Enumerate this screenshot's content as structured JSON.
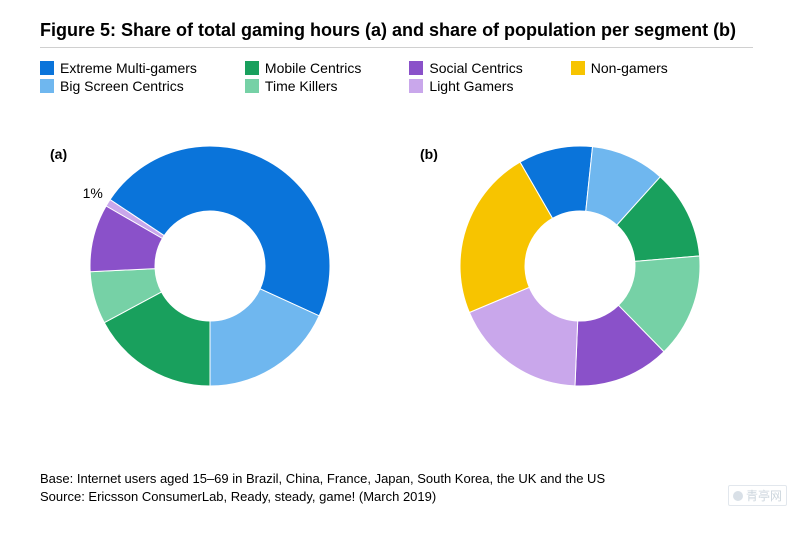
{
  "title": "Figure 5: Share of total gaming hours (a) and share of population per segment (b)",
  "legend": {
    "columns": [
      [
        {
          "label": "Extreme Multi-gamers",
          "color": "#0a74da"
        },
        {
          "label": "Big Screen Centrics",
          "color": "#6fb7ef"
        }
      ],
      [
        {
          "label": "Mobile Centrics",
          "color": "#19a05d"
        },
        {
          "label": "Time Killers",
          "color": "#76d1a6"
        }
      ],
      [
        {
          "label": "Social Centrics",
          "color": "#8a51c9"
        },
        {
          "label": "Light Gamers",
          "color": "#c9a7eb"
        }
      ],
      [
        {
          "label": "Non-gamers",
          "color": "#f7c400"
        }
      ]
    ]
  },
  "charts": {
    "donut_outer_r": 120,
    "donut_inner_r": 55,
    "label_r": 88,
    "size": 260,
    "a": {
      "tag": "(a)",
      "start_angle": 210,
      "slices": [
        {
          "name": "Light Gamers",
          "value": 1,
          "color": "#c9a7eb",
          "label": "1%",
          "label_outside": true
        },
        {
          "name": "Extreme Multi-gamers",
          "value": 47,
          "color": "#0a74da",
          "label": "47%"
        },
        {
          "name": "Big Screen Centrics",
          "value": 18,
          "color": "#6fb7ef",
          "label": "18%"
        },
        {
          "name": "Mobile Centrics",
          "value": 17,
          "color": "#19a05d",
          "label": "17%"
        },
        {
          "name": "Time Killers",
          "value": 7,
          "color": "#76d1a6",
          "label": "7%"
        },
        {
          "name": "Social Centrics",
          "value": 9,
          "color": "#8a51c9",
          "label": "9%"
        }
      ]
    },
    "b": {
      "tag": "(b)",
      "start_angle": 240,
      "slices": [
        {
          "name": "Extreme Multi-gamers",
          "value": 10,
          "color": "#0a74da",
          "label": "10%"
        },
        {
          "name": "Big Screen Centrics",
          "value": 10,
          "color": "#6fb7ef",
          "label": "10%"
        },
        {
          "name": "Mobile Centrics",
          "value": 12,
          "color": "#19a05d",
          "label": "12%"
        },
        {
          "name": "Time Killers",
          "value": 14,
          "color": "#76d1a6",
          "label": "14%"
        },
        {
          "name": "Social Centrics",
          "value": 13,
          "color": "#8a51c9",
          "label": "13%"
        },
        {
          "name": "Light Gamers",
          "value": 18,
          "color": "#c9a7eb",
          "label": "18%"
        },
        {
          "name": "Non-gamers",
          "value": 23,
          "color": "#f7c400",
          "label": "23%"
        }
      ]
    }
  },
  "footer": {
    "line1": "Base: Internet users aged 15–69 in Brazil, China, France, Japan, South Korea, the UK and the US",
    "line2": "Source: Ericsson ConsumerLab, Ready, steady, game! (March 2019)"
  },
  "watermark": "青亭网",
  "style": {
    "title_fontsize": 18,
    "legend_fontsize": 14,
    "slice_label_fontsize": 14,
    "footer_fontsize": 13,
    "background": "#ffffff",
    "divider_color": "#d0d0d0"
  }
}
